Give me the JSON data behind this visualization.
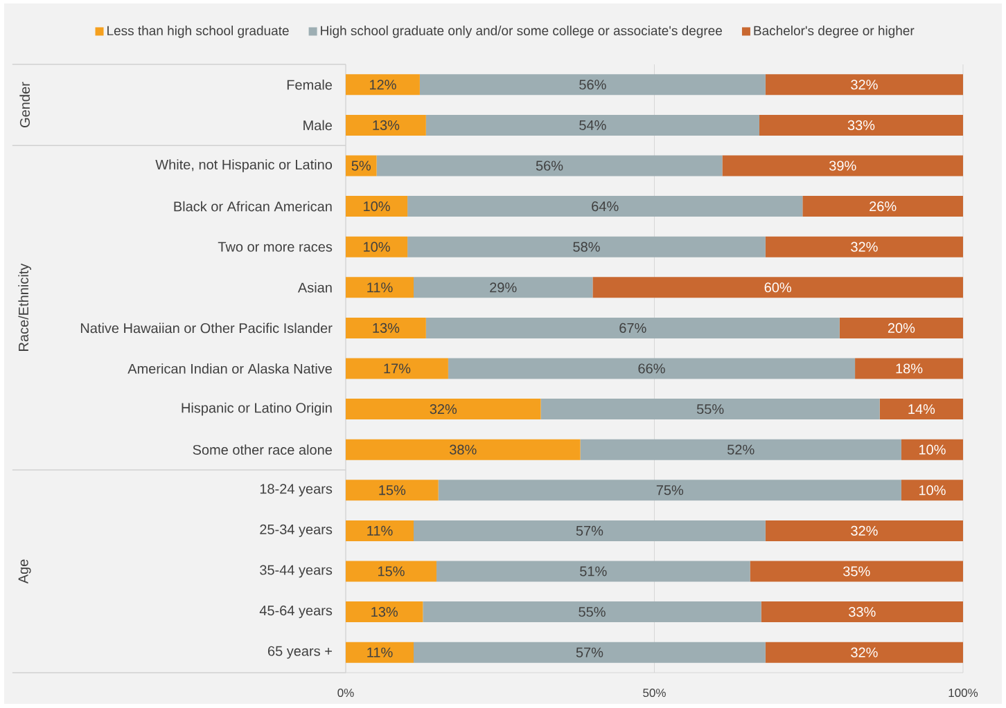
{
  "chart_data": {
    "type": "bar",
    "orientation": "horizontal",
    "stacked": true,
    "categories": [
      "Female",
      "Male",
      "White, not Hispanic or Latino",
      "Black or African American",
      "Two or more races",
      "Asian",
      "Native Hawaiian or Other Pacific Islander",
      "American Indian or Alaska Native",
      "Hispanic or Latino Origin",
      "Some other race alone",
      "18-24 years",
      "25-34 years",
      "35-44 years",
      "45-64 years",
      "65 years +"
    ],
    "series": [
      {
        "name": "Less than high school graduate",
        "color": "#f5a01e",
        "values": [
          12,
          13,
          5,
          10,
          10,
          11,
          13,
          16.6,
          31.6,
          38,
          15,
          11,
          14.7,
          12.5,
          11
        ],
        "value_labels": [
          "12%",
          "13%",
          "5%",
          "10%",
          "10%",
          "11%",
          "13%",
          "17%",
          "32%",
          "38%",
          "15%",
          "11%",
          "15%",
          "13%",
          "11%"
        ]
      },
      {
        "name": "High school graduate only and/or some college or associate's degree",
        "color": "#9daeb3",
        "values": [
          56,
          54,
          56,
          64,
          58,
          29,
          67,
          65.9,
          54.9,
          52,
          75,
          57,
          50.8,
          54.8,
          57
        ],
        "value_labels": [
          "56%",
          "54%",
          "56%",
          "64%",
          "58%",
          "29%",
          "67%",
          "66%",
          "55%",
          "52%",
          "75%",
          "57%",
          "51%",
          "55%",
          "57%"
        ]
      },
      {
        "name": "Bachelor's degree or higher",
        "color": "#c96830",
        "values": [
          32,
          33,
          39,
          26,
          32,
          60,
          20,
          17.5,
          13.5,
          10,
          10,
          32,
          34.5,
          32.7,
          32
        ],
        "value_labels": [
          "32%",
          "33%",
          "39%",
          "26%",
          "32%",
          "60%",
          "20%",
          "18%",
          "14%",
          "10%",
          "10%",
          "32%",
          "35%",
          "33%",
          "32%"
        ]
      }
    ],
    "xlim": [
      0,
      100
    ],
    "xticks": [
      {
        "value": 0,
        "label": "0%"
      },
      {
        "value": 50,
        "label": "50%"
      },
      {
        "value": 100,
        "label": "100%"
      }
    ],
    "grid": "x",
    "legend": "top",
    "annotations": [
      "Gender",
      "Race/Ethnicity",
      "Age"
    ]
  }
}
